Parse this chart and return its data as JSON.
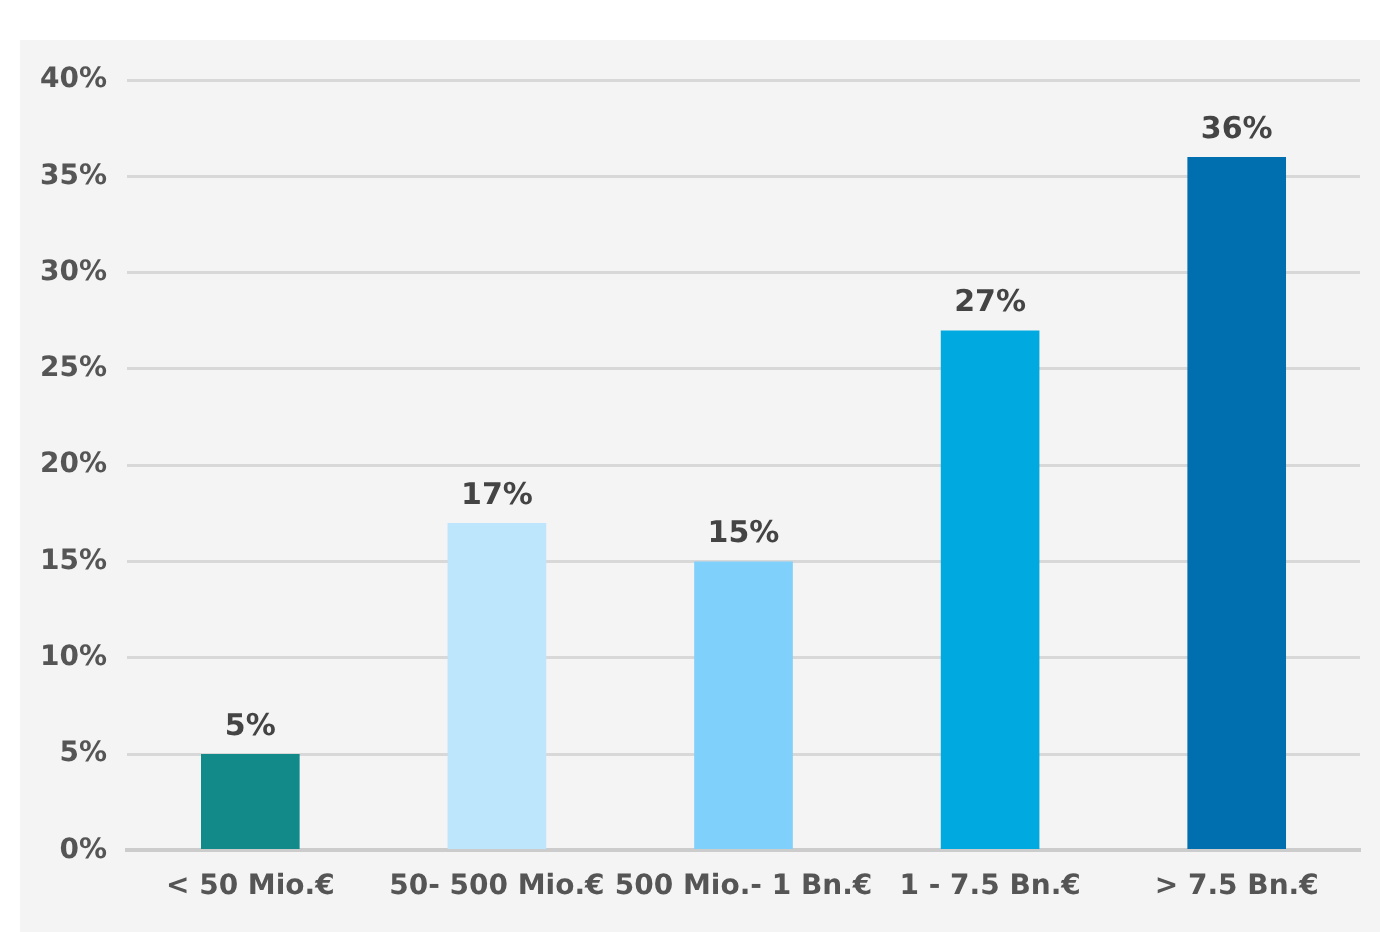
{
  "chart_data": {
    "type": "bar",
    "categories": [
      "< 50 Mio.€",
      "50- 500 Mio.€",
      "500 Mio.- 1 Bn.€",
      "1 - 7.5 Bn.€",
      "> 7.5 Bn.€"
    ],
    "values": [
      5,
      17,
      15,
      27,
      36
    ],
    "colors": [
      "#138a8a",
      "#bde5fb",
      "#7fd0fb",
      "#00a9e0",
      "#006fb0"
    ],
    "value_labels": [
      "5%",
      "17%",
      "15%",
      "27%",
      "36%"
    ],
    "ylim": [
      0,
      40
    ],
    "yticks": [
      {
        "value": 0,
        "label": "0%"
      },
      {
        "value": 5,
        "label": "5%"
      },
      {
        "value": 10,
        "label": "10%"
      },
      {
        "value": 15,
        "label": "15%"
      },
      {
        "value": 20,
        "label": "20%"
      },
      {
        "value": 25,
        "label": "25%"
      },
      {
        "value": 30,
        "label": "30%"
      },
      {
        "value": 35,
        "label": "35%"
      },
      {
        "value": 40,
        "label": "40%"
      }
    ],
    "grid": "y",
    "legend": false
  }
}
